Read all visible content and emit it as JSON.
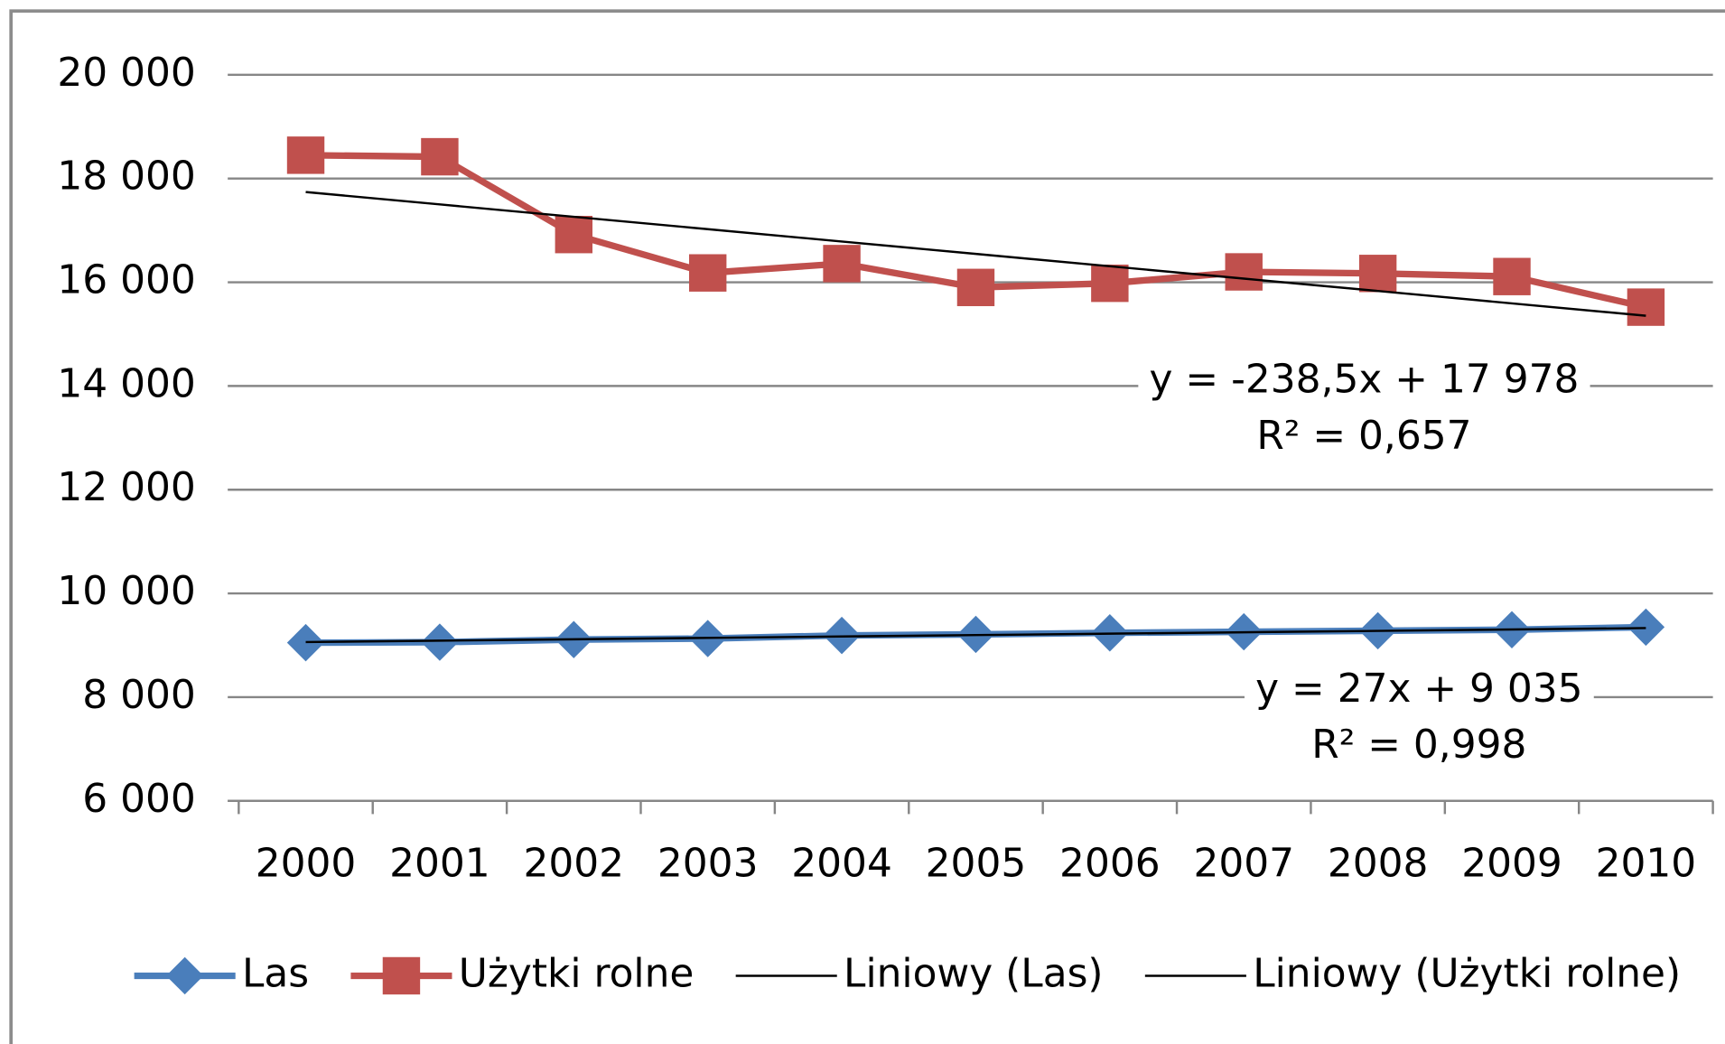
{
  "chart_data": {
    "type": "line",
    "categories": [
      "2000",
      "2001",
      "2002",
      "2003",
      "2004",
      "2005",
      "2006",
      "2007",
      "2008",
      "2009",
      "2010"
    ],
    "series": [
      {
        "name": "Las",
        "color": "#4a7ebb",
        "marker": "diamond",
        "values": [
          9050,
          9060,
          9110,
          9130,
          9190,
          9210,
          9240,
          9260,
          9280,
          9300,
          9350
        ]
      },
      {
        "name": "Użytki rolne",
        "color": "#c0504d",
        "marker": "square",
        "values": [
          18450,
          18420,
          16920,
          16180,
          16360,
          15900,
          15980,
          16200,
          16170,
          16110,
          15520
        ]
      },
      {
        "name": "Liniowy (Las)",
        "color": "#000000",
        "values": [
          9062,
          9089,
          9116,
          9143,
          9170,
          9197,
          9224,
          9251,
          9278,
          9305,
          9332
        ]
      },
      {
        "name": "Liniowy (Użytki rolne)",
        "color": "#000000",
        "values": [
          17739.5,
          17501,
          17262.5,
          17024,
          16785.5,
          16547,
          16308.5,
          16070,
          15831.5,
          15593,
          15354.5
        ]
      }
    ],
    "ylim": [
      6000,
      20000
    ],
    "yticks": [
      {
        "value": 6000,
        "label": "6 000"
      },
      {
        "value": 8000,
        "label": "8 000"
      },
      {
        "value": 10000,
        "label": "10 000"
      },
      {
        "value": 12000,
        "label": "12 000"
      },
      {
        "value": 14000,
        "label": "14 000"
      },
      {
        "value": 16000,
        "label": "16 000"
      },
      {
        "value": 18000,
        "label": "18 000"
      },
      {
        "value": 20000,
        "label": "20 000"
      }
    ],
    "grid": true,
    "legend": "bottom",
    "annotations": [
      {
        "lines": [
          "y = -238,5x + 17 978",
          "R² = 0,657"
        ]
      },
      {
        "lines": [
          "y = 27x + 9 035",
          "R² = 0,998"
        ]
      }
    ]
  }
}
